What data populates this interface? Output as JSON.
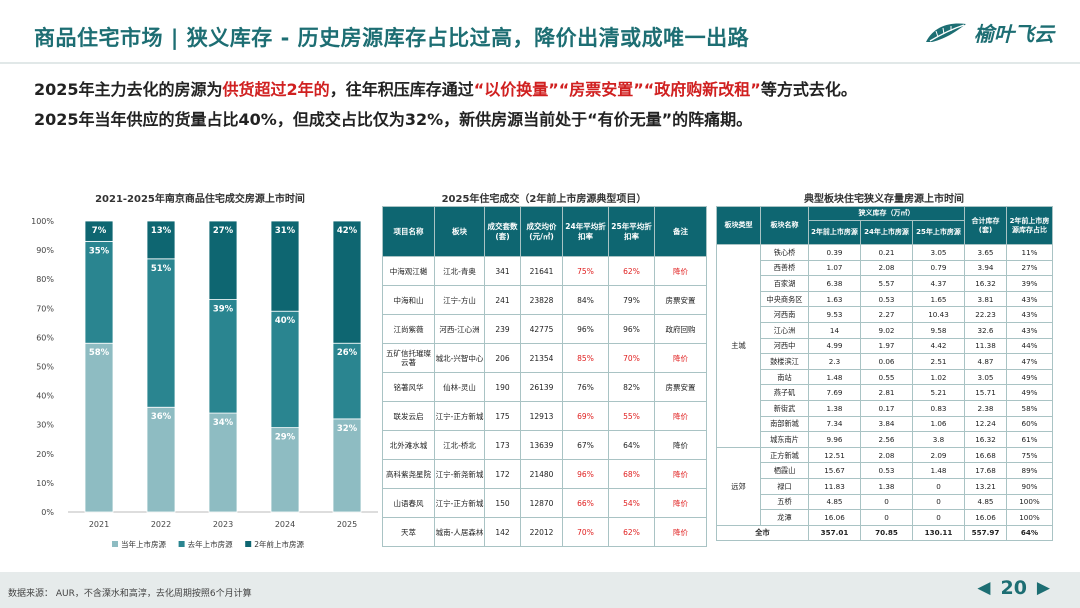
{
  "header": {
    "title": "商品住宅市场 | 狭义库存 - 历史房源库存占比过高，降价出清或成唯一出路",
    "logo_text": "榆叶飞云",
    "logo_icon": "leaf-icon"
  },
  "lead": {
    "line1": {
      "p1": "2025年主力去化的房源为",
      "hl1": "供货超过2年的",
      "p2": "，往年积压库存通过",
      "hl2": "“以价换量”“房票安置”“政府购新改租”",
      "p3": "等方式去化。"
    },
    "line2": "2025年当年供应的货量占比40%，但成交占比仅为32%，新供房源当前处于“有价无量”的阵痛期。"
  },
  "chart": {
    "title": "2021-2025年南京商品住宅成交房源上市时间",
    "colors": [
      "#8ebcc2",
      "#2a8590",
      "#0e6671"
    ],
    "chart_data": {
      "type": "bar",
      "stacked": true,
      "title": "2021-2025年南京商品住宅成交房源上市时间",
      "categories": [
        "2021",
        "2022",
        "2023",
        "2024",
        "2025"
      ],
      "series": [
        {
          "name": "当年上市房源",
          "values": [
            58,
            36,
            34,
            29,
            32
          ]
        },
        {
          "name": "去年上市房源",
          "values": [
            35,
            51,
            39,
            40,
            26
          ]
        },
        {
          "name": "2年前上市房源",
          "values": [
            7,
            13,
            27,
            31,
            42
          ]
        }
      ],
      "yticks": [
        "0%",
        "10%",
        "20%",
        "30%",
        "40%",
        "50%",
        "60%",
        "70%",
        "80%",
        "90%",
        "100%"
      ],
      "ylim": [
        0,
        100
      ],
      "legend_position": "bottom",
      "grid": false
    }
  },
  "table1": {
    "title": "2025年住宅成交（2年前上市房源典型项目）",
    "headers": [
      "项目名称",
      "板块",
      "成交套数(套)",
      "成交均价(元/㎡)",
      "24年平均折扣率",
      "25年平均折扣率",
      "备注"
    ],
    "rows": [
      [
        "中海观江樾",
        "江北-青奥",
        "341",
        "21641",
        "75%",
        "62%",
        "降价"
      ],
      [
        "中海和山",
        "江宁-方山",
        "241",
        "23828",
        "84%",
        "79%",
        "房票安置"
      ],
      [
        "江尚紫薇",
        "河西-江心洲",
        "239",
        "42775",
        "96%",
        "96%",
        "政府回购"
      ],
      [
        "五矿信托璀璨云著",
        "城北-兴智中心",
        "206",
        "21354",
        "85%",
        "70%",
        "降价"
      ],
      [
        "铭著风华",
        "仙林-灵山",
        "190",
        "26139",
        "76%",
        "82%",
        "房票安置"
      ],
      [
        "联发云启",
        "江宁-正方新城",
        "175",
        "12913",
        "69%",
        "55%",
        "降价"
      ],
      [
        "北外滩水城",
        "江北-桥北",
        "173",
        "13639",
        "67%",
        "64%",
        "降价"
      ],
      [
        "高科紫尧星院",
        "江宁-新尧新城",
        "172",
        "21480",
        "96%",
        "68%",
        "降价"
      ],
      [
        "山语春风",
        "江宁-正方新城",
        "150",
        "12870",
        "66%",
        "54%",
        "降价"
      ],
      [
        "天萃",
        "城南-人居森林",
        "142",
        "22012",
        "70%",
        "62%",
        "降价"
      ]
    ],
    "red_rows": [
      0,
      3,
      5,
      7,
      8,
      9
    ]
  },
  "table2": {
    "title": "典型板块住宅狭义存量房源上市时间",
    "headers": {
      "type": "板块类型",
      "name": "板块名称",
      "group": "狭义库存（万㎡）",
      "c1": "2年前上市房源",
      "c2": "24年上市房源",
      "c3": "25年上市房源",
      "total": "合计库存(套)",
      "ratio": "2年前上市房源库存占比"
    },
    "groups": [
      {
        "type": "主城",
        "rows": [
          [
            "铁心桥",
            "0.39",
            "0.21",
            "3.05",
            "3.65",
            "11%"
          ],
          [
            "西善桥",
            "1.07",
            "2.08",
            "0.79",
            "3.94",
            "27%"
          ],
          [
            "百家湖",
            "6.38",
            "5.57",
            "4.37",
            "16.32",
            "39%"
          ],
          [
            "中央商务区",
            "1.63",
            "0.53",
            "1.65",
            "3.81",
            "43%"
          ],
          [
            "河西南",
            "9.53",
            "2.27",
            "10.43",
            "22.23",
            "43%"
          ],
          [
            "江心洲",
            "14",
            "9.02",
            "9.58",
            "32.6",
            "43%"
          ],
          [
            "河西中",
            "4.99",
            "1.97",
            "4.42",
            "11.38",
            "44%"
          ],
          [
            "鼓楼滨江",
            "2.3",
            "0.06",
            "2.51",
            "4.87",
            "47%"
          ],
          [
            "南站",
            "1.48",
            "0.55",
            "1.02",
            "3.05",
            "49%"
          ],
          [
            "燕子矶",
            "7.69",
            "2.81",
            "5.21",
            "15.71",
            "49%"
          ],
          [
            "新街武",
            "1.38",
            "0.17",
            "0.83",
            "2.38",
            "58%"
          ],
          [
            "南部新城",
            "7.34",
            "3.84",
            "1.06",
            "12.24",
            "60%"
          ],
          [
            "城东南片",
            "9.96",
            "2.56",
            "3.8",
            "16.32",
            "61%"
          ]
        ]
      },
      {
        "type": "远郊",
        "rows": [
          [
            "正方新城",
            "12.51",
            "2.08",
            "2.09",
            "16.68",
            "75%"
          ],
          [
            "栖霞山",
            "15.67",
            "0.53",
            "1.48",
            "17.68",
            "89%"
          ],
          [
            "禄口",
            "11.83",
            "1.38",
            "0",
            "13.21",
            "90%"
          ],
          [
            "五桥",
            "4.85",
            "0",
            "0",
            "4.85",
            "100%"
          ],
          [
            "龙潭",
            "16.06",
            "0",
            "0",
            "16.06",
            "100%"
          ]
        ]
      }
    ],
    "total": [
      "全市",
      "357.01",
      "70.85",
      "130.11",
      "557.97",
      "64%"
    ]
  },
  "footer": {
    "source": "数据来源：  AUR，不含溧水和高淳，去化周期按照6个月计算",
    "page": "20",
    "prev_icon": "triangle-left-icon",
    "next_icon": "triangle-right-icon"
  }
}
